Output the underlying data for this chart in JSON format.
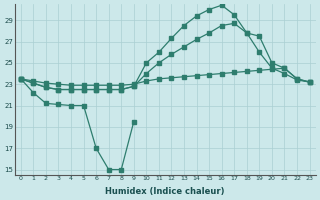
{
  "xlabel": "Humidex (Indice chaleur)",
  "bg_color": "#cce8ea",
  "grid_color": "#aacfd2",
  "line_color": "#2e7d6e",
  "xlim": [
    -0.5,
    23.5
  ],
  "ylim": [
    14.5,
    30.5
  ],
  "yticks": [
    15,
    17,
    19,
    21,
    23,
    25,
    27,
    29
  ],
  "xticks": [
    0,
    1,
    2,
    3,
    4,
    5,
    6,
    7,
    8,
    9,
    10,
    11,
    12,
    13,
    14,
    15,
    16,
    17,
    18,
    19,
    20,
    21,
    22,
    23
  ],
  "s1_x": [
    0,
    1,
    2,
    3,
    4,
    5,
    6,
    7,
    8,
    9
  ],
  "s1_y": [
    23.5,
    22.2,
    21.2,
    21.1,
    21.0,
    21.0,
    17.0,
    15.0,
    15.0,
    19.5
  ],
  "s2_x": [
    0,
    1,
    2,
    3,
    4,
    5,
    6,
    7,
    8,
    9,
    10,
    11,
    12,
    13,
    14,
    15,
    16,
    17,
    18,
    19,
    20,
    21,
    22,
    23
  ],
  "s2_y": [
    23.5,
    23.1,
    22.7,
    22.5,
    22.5,
    22.5,
    22.5,
    22.5,
    22.5,
    22.8,
    25.0,
    26.0,
    27.3,
    28.5,
    29.4,
    30.0,
    30.4,
    29.5,
    27.8,
    27.5,
    25.0,
    24.5,
    23.5,
    23.2
  ],
  "s3_x": [
    0,
    1,
    2,
    3,
    4,
    5,
    6,
    7,
    8,
    9,
    10,
    11,
    12,
    13,
    14,
    15,
    16,
    17,
    18,
    19,
    20,
    21,
    22,
    23
  ],
  "s3_y": [
    23.5,
    23.1,
    22.7,
    22.5,
    22.5,
    22.5,
    22.5,
    22.5,
    22.5,
    22.8,
    24.0,
    25.0,
    25.8,
    26.5,
    27.2,
    27.8,
    28.5,
    28.7,
    27.8,
    26.0,
    24.5,
    24.0,
    23.4,
    23.2
  ],
  "s4_x": [
    0,
    1,
    2,
    3,
    4,
    5,
    6,
    7,
    8,
    9,
    10,
    11,
    12,
    13,
    14,
    15,
    16,
    17,
    18,
    19,
    20,
    21,
    22,
    23
  ],
  "s4_y": [
    23.5,
    23.3,
    23.1,
    23.0,
    22.9,
    22.9,
    22.9,
    22.9,
    22.9,
    23.0,
    23.3,
    23.5,
    23.6,
    23.7,
    23.8,
    23.9,
    24.0,
    24.1,
    24.2,
    24.3,
    24.4,
    24.5,
    23.5,
    23.2
  ]
}
